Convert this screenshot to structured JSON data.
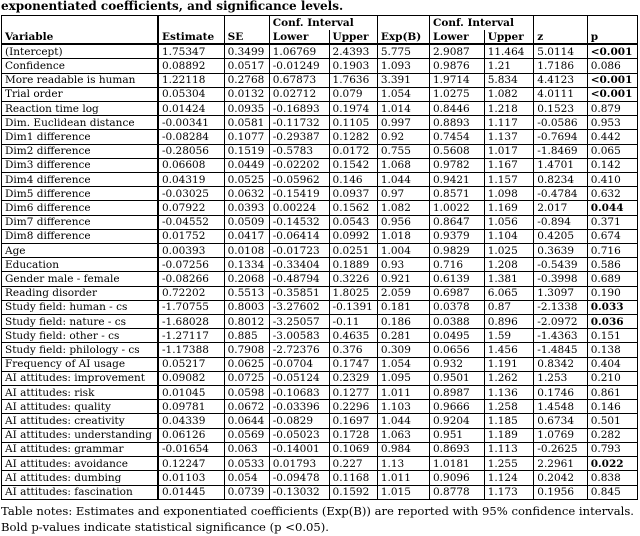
{
  "caption": "exponentiated coefficients, and significance levels.",
  "table": {
    "header": {
      "conf_interval_1": "Conf. Interval",
      "conf_interval_2": "Conf. Interval",
      "columns": [
        "Variable",
        "Estimate",
        "SE",
        "Lower",
        "Upper",
        "Exp(B)",
        "Lower",
        "Upper",
        "z",
        "p"
      ]
    },
    "rows": [
      {
        "cells": [
          "(Intercept)",
          "1.75347",
          "0.3499",
          "1.06769",
          "2.4393",
          "5.775",
          "2.9087",
          "11.464",
          "5.0114",
          "<0.001"
        ],
        "sig": true
      },
      {
        "cells": [
          "Confidence",
          "0.08892",
          "0.0517",
          "-0.01249",
          "0.1903",
          "1.093",
          "0.9876",
          "1.21",
          "1.7186",
          "0.086"
        ],
        "sig": false
      },
      {
        "cells": [
          "More readable is human",
          "1.22118",
          "0.2768",
          "0.67873",
          "1.7636",
          "3.391",
          "1.9714",
          "5.834",
          "4.4123",
          "<0.001"
        ],
        "sig": true
      },
      {
        "cells": [
          "Trial order",
          "0.05304",
          "0.0132",
          "0.02712",
          "0.079",
          "1.054",
          "1.0275",
          "1.082",
          "4.0111",
          "<0.001"
        ],
        "sig": true
      },
      {
        "cells": [
          "Reaction time log",
          "0.01424",
          "0.0935",
          "-0.16893",
          "0.1974",
          "1.014",
          "0.8446",
          "1.218",
          "0.1523",
          "0.879"
        ],
        "sig": false
      },
      {
        "cells": [
          "Dim. Euclidean distance",
          "-0.00341",
          "0.0581",
          "-0.11732",
          "0.1105",
          "0.997",
          "0.8893",
          "1.117",
          "-0.0586",
          "0.953"
        ],
        "sig": false
      },
      {
        "cells": [
          "Dim1 difference",
          "-0.08284",
          "0.1077",
          "-0.29387",
          "0.1282",
          "0.92",
          "0.7454",
          "1.137",
          "-0.7694",
          "0.442"
        ],
        "sig": false
      },
      {
        "cells": [
          "Dim2 difference",
          "-0.28056",
          "0.1519",
          "-0.5783",
          "0.0172",
          "0.755",
          "0.5608",
          "1.017",
          "-1.8469",
          "0.065"
        ],
        "sig": false
      },
      {
        "cells": [
          "Dim3 difference",
          "0.06608",
          "0.0449",
          "-0.02202",
          "0.1542",
          "1.068",
          "0.9782",
          "1.167",
          "1.4701",
          "0.142"
        ],
        "sig": false
      },
      {
        "cells": [
          "Dim4 difference",
          "0.04319",
          "0.0525",
          "-0.05962",
          "0.146",
          "1.044",
          "0.9421",
          "1.157",
          "0.8234",
          "0.410"
        ],
        "sig": false
      },
      {
        "cells": [
          "Dim5 difference",
          "-0.03025",
          "0.0632",
          "-0.15419",
          "0.0937",
          "0.97",
          "0.8571",
          "1.098",
          "-0.4784",
          "0.632"
        ],
        "sig": false
      },
      {
        "cells": [
          "Dim6 difference",
          "0.07922",
          "0.0393",
          "0.00224",
          "0.1562",
          "1.082",
          "1.0022",
          "1.169",
          "2.017",
          "0.044"
        ],
        "sig": true
      },
      {
        "cells": [
          "Dim7 difference",
          "-0.04552",
          "0.0509",
          "-0.14532",
          "0.0543",
          "0.956",
          "0.8647",
          "1.056",
          "-0.894",
          "0.371"
        ],
        "sig": false
      },
      {
        "cells": [
          "Dim8 difference",
          "0.01752",
          "0.0417",
          "-0.06414",
          "0.0992",
          "1.018",
          "0.9379",
          "1.104",
          "0.4205",
          "0.674"
        ],
        "sig": false
      },
      {
        "cells": [
          "Age",
          "0.00393",
          "0.0108",
          "-0.01723",
          "0.0251",
          "1.004",
          "0.9829",
          "1.025",
          "0.3639",
          "0.716"
        ],
        "sig": false
      },
      {
        "cells": [
          "Education",
          "-0.07256",
          "0.1334",
          "-0.33404",
          "0.1889",
          "0.93",
          "0.716",
          "1.208",
          "-0.5439",
          "0.586"
        ],
        "sig": false
      },
      {
        "cells": [
          "Gender male - female",
          "-0.08266",
          "0.2068",
          "-0.48794",
          "0.3226",
          "0.921",
          "0.6139",
          "1.381",
          "-0.3998",
          "0.689"
        ],
        "sig": false
      },
      {
        "cells": [
          "Reading disorder",
          "0.72202",
          "0.5513",
          "-0.35851",
          "1.8025",
          "2.059",
          "0.6987",
          "6.065",
          "1.3097",
          "0.190"
        ],
        "sig": false
      },
      {
        "cells": [
          "Study field: human - cs",
          "-1.70755",
          "0.8003",
          "-3.27602",
          "-0.1391",
          "0.181",
          "0.0378",
          "0.87",
          "-2.1338",
          "0.033"
        ],
        "sig": true
      },
      {
        "cells": [
          "Study field: nature - cs",
          "-1.68028",
          "0.8012",
          "-3.25057",
          "-0.11",
          "0.186",
          "0.0388",
          "0.896",
          "-2.0972",
          "0.036"
        ],
        "sig": true
      },
      {
        "cells": [
          "Study field: other - cs",
          "-1.27117",
          "0.885",
          "-3.00583",
          "0.4635",
          "0.281",
          "0.0495",
          "1.59",
          "-1.4363",
          "0.151"
        ],
        "sig": false
      },
      {
        "cells": [
          "Study field: philology - cs",
          "-1.17388",
          "0.7908",
          "-2.72376",
          "0.376",
          "0.309",
          "0.0656",
          "1.456",
          "-1.4845",
          "0.138"
        ],
        "sig": false
      },
      {
        "cells": [
          "Frequency of AI usage",
          "0.05217",
          "0.0625",
          "-0.0704",
          "0.1747",
          "1.054",
          "0.932",
          "1.191",
          "0.8342",
          "0.404"
        ],
        "sig": false
      },
      {
        "cells": [
          "AI attitudes: improvement",
          "0.09082",
          "0.0725",
          "-0.05124",
          "0.2329",
          "1.095",
          "0.9501",
          "1.262",
          "1.253",
          "0.210"
        ],
        "sig": false
      },
      {
        "cells": [
          "AI attitudes: risk",
          "0.01045",
          "0.0598",
          "-0.10683",
          "0.1277",
          "1.011",
          "0.8987",
          "1.136",
          "0.1746",
          "0.861"
        ],
        "sig": false
      },
      {
        "cells": [
          "AI attitudes: quality",
          "0.09781",
          "0.0672",
          "-0.03396",
          "0.2296",
          "1.103",
          "0.9666",
          "1.258",
          "1.4548",
          "0.146"
        ],
        "sig": false
      },
      {
        "cells": [
          "AI attitudes: creativity",
          "0.04339",
          "0.0644",
          "-0.0829",
          "0.1697",
          "1.044",
          "0.9204",
          "1.185",
          "0.6734",
          "0.501"
        ],
        "sig": false
      },
      {
        "cells": [
          "AI attitudes: understanding",
          "0.06126",
          "0.0569",
          "-0.05023",
          "0.1728",
          "1.063",
          "0.951",
          "1.189",
          "1.0769",
          "0.282"
        ],
        "sig": false
      },
      {
        "cells": [
          "AI attitudes: grammar",
          "-0.01654",
          "0.063",
          "-0.14001",
          "0.1069",
          "0.984",
          "0.8693",
          "1.113",
          "-0.2625",
          "0.793"
        ],
        "sig": false
      },
      {
        "cells": [
          "AI attitudes: avoidance",
          "0.12247",
          "0.0533",
          "0.01793",
          "0.227",
          "1.13",
          "1.0181",
          "1.255",
          "2.2961",
          "0.022"
        ],
        "sig": true
      },
      {
        "cells": [
          "AI attitudes: dumbing",
          "0.01103",
          "0.054",
          "-0.09478",
          "0.1168",
          "1.011",
          "0.9096",
          "1.124",
          "0.2042",
          "0.838"
        ],
        "sig": false
      },
      {
        "cells": [
          "AI attitudes: fascination",
          "0.01445",
          "0.0739",
          "-0.13032",
          "0.1592",
          "1.015",
          "0.8778",
          "1.173",
          "0.1956",
          "0.845"
        ],
        "sig": false
      }
    ]
  },
  "notes": "Table notes: Estimates and exponentiated coefficients (Exp(B)) are reported with 95% confidence intervals. Bold p-values indicate statistical significance (p <0.05)."
}
